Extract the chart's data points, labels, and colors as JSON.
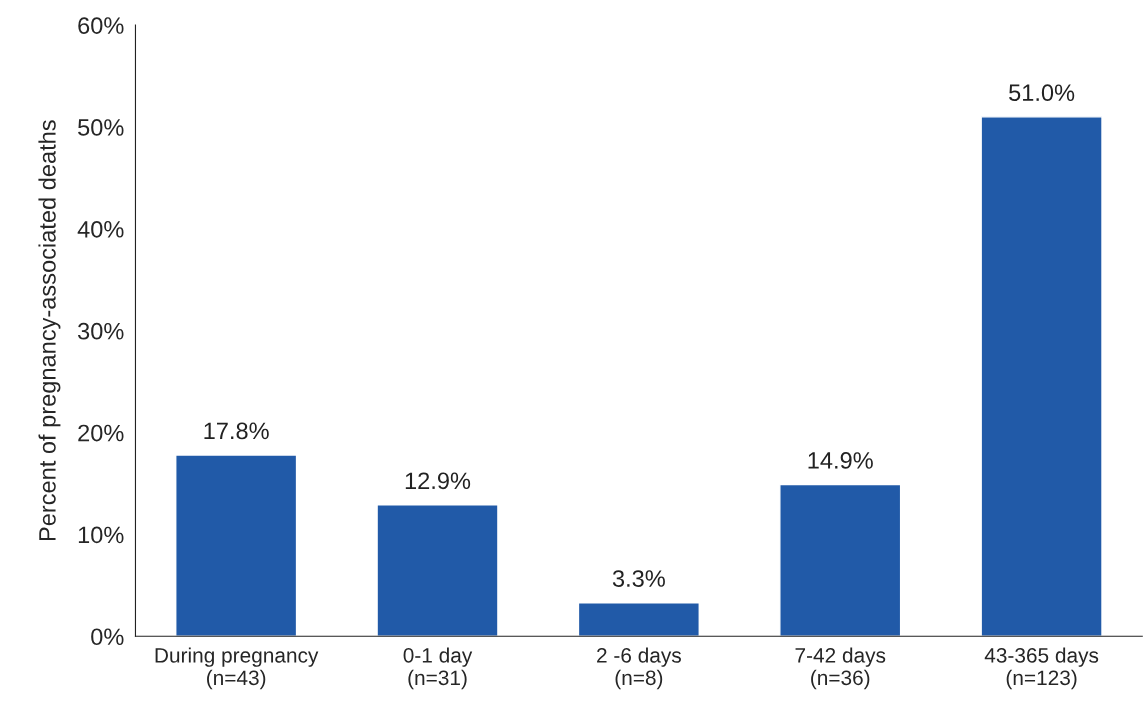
{
  "chart_data": {
    "type": "bar",
    "ylabel": "Percent of pregnancy-associated deaths",
    "categories": [
      "During pregnancy\n(n=43)",
      "0-1 day\n(n=31)",
      "2 -6 days\n(n=8)",
      "7-42 days\n(n=36)",
      "43-365 days\n(n=123)"
    ],
    "values": [
      17.8,
      12.9,
      3.3,
      14.9,
      51.0
    ],
    "value_labels": [
      "17.8%",
      "12.9%",
      "3.3%",
      "14.9%",
      "51.0%"
    ],
    "color": "#215aa8",
    "ylim": [
      0,
      60
    ],
    "yticks": [
      {
        "value": 0,
        "label": "0%"
      },
      {
        "value": 10,
        "label": "10%"
      },
      {
        "value": 20,
        "label": "20%"
      },
      {
        "value": 30,
        "label": "30%"
      },
      {
        "value": 40,
        "label": "40%"
      },
      {
        "value": 50,
        "label": "50%"
      },
      {
        "value": 60,
        "label": "60%"
      }
    ],
    "grid": false,
    "legend": false
  }
}
